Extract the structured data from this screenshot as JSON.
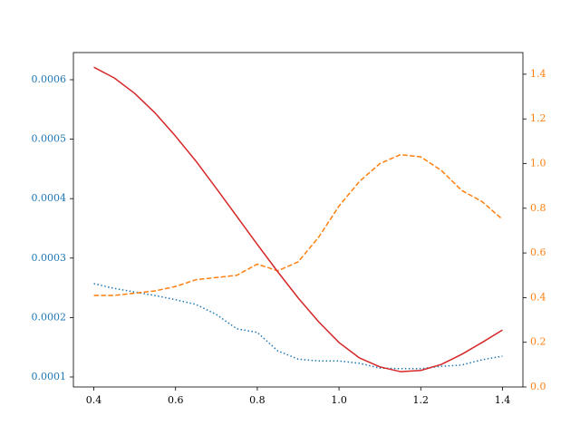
{
  "chart_data": {
    "type": "line",
    "x": [
      0.4,
      0.45,
      0.5,
      0.55,
      0.6,
      0.65,
      0.7,
      0.75,
      0.8,
      0.85,
      0.9,
      0.95,
      1.0,
      1.05,
      1.1,
      1.15,
      1.2,
      1.25,
      1.3,
      1.35,
      1.4
    ],
    "series": [
      {
        "color": "#1f77b4",
        "style": "dotted",
        "axis": "y",
        "values": [
          0.000257,
          0.000249,
          0.000243,
          0.000237,
          0.00023,
          0.000222,
          0.000205,
          0.000181,
          0.000175,
          0.000144,
          0.00013,
          0.000127,
          0.000127,
          0.000123,
          0.000115,
          0.000114,
          0.000114,
          0.000118,
          0.00012,
          0.000129,
          0.000135
        ]
      },
      {
        "color": "#ff7f0e",
        "style": "dashed",
        "axis": "y2",
        "values": [
          0.41,
          0.41,
          0.42,
          0.43,
          0.45,
          0.48,
          0.49,
          0.5,
          0.55,
          0.52,
          0.56,
          0.67,
          0.81,
          0.92,
          1.0,
          1.04,
          1.03,
          0.97,
          0.88,
          0.83,
          0.75
        ]
      },
      {
        "color": "#d62728",
        "style": "solid",
        "axis": "y",
        "values": [
          0.000621,
          0.000603,
          0.000577,
          0.000544,
          0.000505,
          0.000463,
          0.000417,
          0.00037,
          0.000323,
          0.000277,
          0.000233,
          0.000193,
          0.000158,
          0.000132,
          0.000117,
          0.000109,
          0.000111,
          0.000121,
          0.000138,
          0.000158,
          0.000179
        ]
      }
    ],
    "xlim": [
      0.35,
      1.45
    ],
    "xticks": [
      0.4,
      0.6,
      0.8,
      {
        "value": 1.0,
        "label": "1.0"
      },
      1.2,
      1.4
    ],
    "ylim": [
      8.32e-05,
      0.0006457
    ],
    "yticks": [
      0.0001,
      0.0002,
      0.0003,
      0.0004,
      0.0005,
      0.0006
    ],
    "y2lim": [
      0,
      1.497
    ],
    "y2ticks": [
      {
        "value": 0,
        "label": "0.0"
      },
      {
        "value": 0.2,
        "label": "0.2"
      },
      {
        "value": 0.4,
        "label": "0.4"
      },
      {
        "value": 0.6,
        "label": "0.6"
      },
      {
        "value": 0.8,
        "label": "0.8"
      },
      {
        "value": 1.0,
        "label": "1.0"
      },
      {
        "value": 1.2,
        "label": "1.2"
      },
      {
        "value": 1.4,
        "label": "1.4"
      }
    ],
    "ytick_color": "#1f77b4",
    "y2tick_color": "#ff7f0e",
    "grid": false
  }
}
